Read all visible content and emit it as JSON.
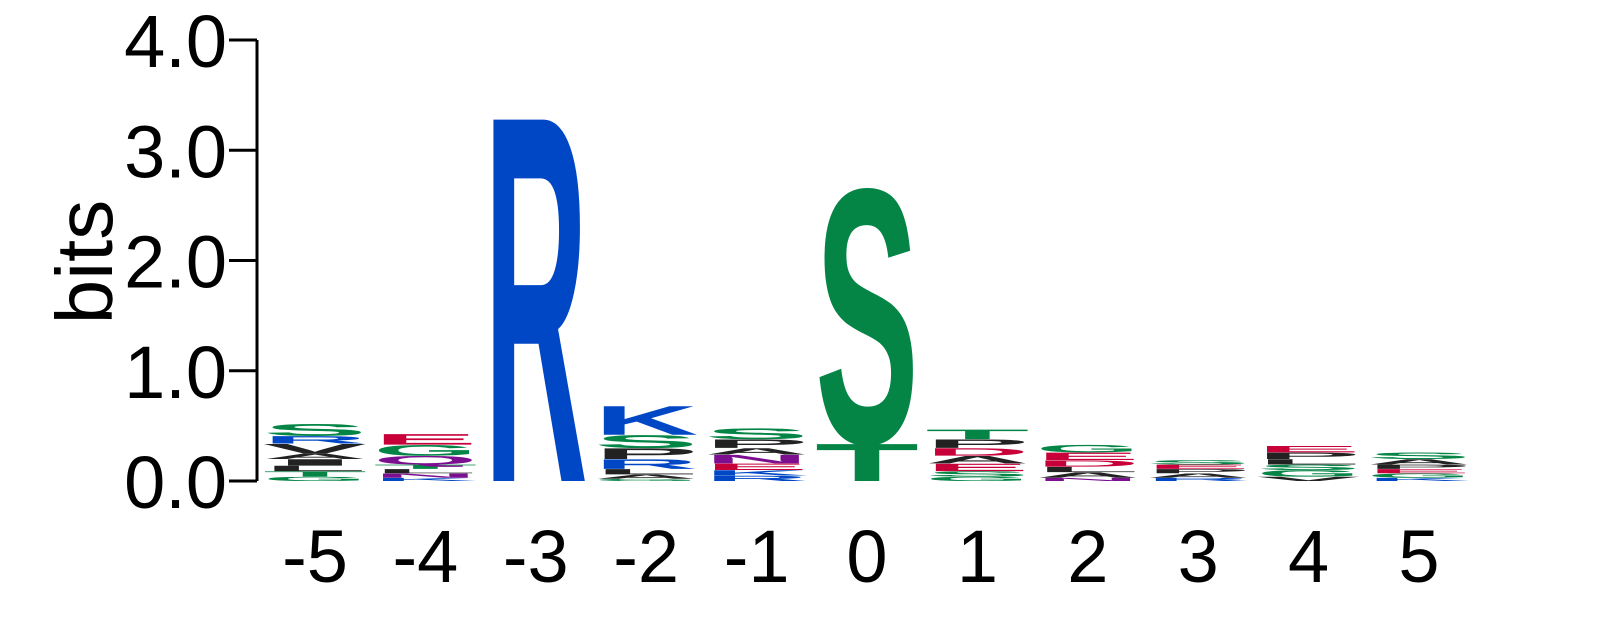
{
  "chart_data": {
    "type": "sequence-logo",
    "ylabel": "bits",
    "ylim": [
      0,
      4
    ],
    "yticks": [
      "0.0",
      "1.0",
      "2.0",
      "3.0",
      "4.0"
    ],
    "ytick_values": [
      0,
      1,
      2,
      3,
      4
    ],
    "colors": {
      "basic": "#0047c6",
      "polar": "#048546",
      "acidic": "#c8003a",
      "hydrophobic": "#222222",
      "amide": "#7b0f8f"
    },
    "positions": [
      {
        "label": "-5",
        "stack": [
          {
            "letter": "G",
            "height": 0.04,
            "color": "#048546"
          },
          {
            "letter": "T",
            "height": 0.05,
            "color": "#048546"
          },
          {
            "letter": "L",
            "height": 0.05,
            "color": "#222222"
          },
          {
            "letter": "I",
            "height": 0.06,
            "color": "#222222"
          },
          {
            "letter": "A",
            "height": 0.05,
            "color": "#222222"
          },
          {
            "letter": "V",
            "height": 0.09,
            "color": "#222222"
          },
          {
            "letter": "R",
            "height": 0.07,
            "color": "#0047c6"
          },
          {
            "letter": "S",
            "height": 0.11,
            "color": "#048546"
          }
        ]
      },
      {
        "label": "-4",
        "stack": [
          {
            "letter": "K",
            "height": 0.03,
            "color": "#0047c6"
          },
          {
            "letter": "N",
            "height": 0.04,
            "color": "#7b0f8f"
          },
          {
            "letter": "L",
            "height": 0.04,
            "color": "#222222"
          },
          {
            "letter": "T",
            "height": 0.04,
            "color": "#048546"
          },
          {
            "letter": "Q",
            "height": 0.08,
            "color": "#7b0f8f"
          },
          {
            "letter": "G",
            "height": 0.1,
            "color": "#048546"
          },
          {
            "letter": "E",
            "height": 0.1,
            "color": "#c8003a"
          }
        ]
      },
      {
        "label": "-3",
        "stack": [
          {
            "letter": "R",
            "height": 3.43,
            "color": "#0047c6"
          }
        ]
      },
      {
        "label": "-2",
        "stack": [
          {
            "letter": "G",
            "height": 0.02,
            "color": "#048546"
          },
          {
            "letter": "A",
            "height": 0.04,
            "color": "#222222"
          },
          {
            "letter": "L",
            "height": 0.05,
            "color": "#222222"
          },
          {
            "letter": "R",
            "height": 0.09,
            "color": "#0047c6"
          },
          {
            "letter": "P",
            "height": 0.1,
            "color": "#222222"
          },
          {
            "letter": "S",
            "height": 0.12,
            "color": "#048546"
          },
          {
            "letter": "K",
            "height": 0.27,
            "color": "#0047c6"
          }
        ]
      },
      {
        "label": "-1",
        "stack": [
          {
            "letter": "R",
            "height": 0.05,
            "color": "#0047c6"
          },
          {
            "letter": "K",
            "height": 0.05,
            "color": "#0047c6"
          },
          {
            "letter": "E",
            "height": 0.06,
            "color": "#c8003a"
          },
          {
            "letter": "N",
            "height": 0.08,
            "color": "#7b0f8f"
          },
          {
            "letter": "A",
            "height": 0.06,
            "color": "#222222"
          },
          {
            "letter": "P",
            "height": 0.08,
            "color": "#222222"
          },
          {
            "letter": "S",
            "height": 0.1,
            "color": "#048546"
          }
        ]
      },
      {
        "label": "0",
        "stack": [
          {
            "letter": "T",
            "height": 0.35,
            "color": "#048546"
          },
          {
            "letter": "S",
            "height": 2.38,
            "color": "#048546"
          }
        ]
      },
      {
        "label": "1",
        "stack": [
          {
            "letter": "G",
            "height": 0.04,
            "color": "#048546"
          },
          {
            "letter": "S",
            "height": 0.05,
            "color": "#048546"
          },
          {
            "letter": "E",
            "height": 0.07,
            "color": "#c8003a"
          },
          {
            "letter": "A",
            "height": 0.07,
            "color": "#222222"
          },
          {
            "letter": "D",
            "height": 0.07,
            "color": "#c8003a"
          },
          {
            "letter": "P",
            "height": 0.08,
            "color": "#222222"
          },
          {
            "letter": "T",
            "height": 0.09,
            "color": "#048546"
          }
        ]
      },
      {
        "label": "2",
        "stack": [
          {
            "letter": "N",
            "height": 0.03,
            "color": "#7b0f8f"
          },
          {
            "letter": "A",
            "height": 0.05,
            "color": "#222222"
          },
          {
            "letter": "L",
            "height": 0.05,
            "color": "#222222"
          },
          {
            "letter": "D",
            "height": 0.06,
            "color": "#c8003a"
          },
          {
            "letter": "E",
            "height": 0.07,
            "color": "#c8003a"
          },
          {
            "letter": "G",
            "height": 0.07,
            "color": "#048546"
          }
        ]
      },
      {
        "label": "3",
        "stack": [
          {
            "letter": "R",
            "height": 0.03,
            "color": "#0047c6"
          },
          {
            "letter": "A",
            "height": 0.04,
            "color": "#222222"
          },
          {
            "letter": "P",
            "height": 0.04,
            "color": "#222222"
          },
          {
            "letter": "E",
            "height": 0.04,
            "color": "#c8003a"
          },
          {
            "letter": "S",
            "height": 0.04,
            "color": "#048546"
          }
        ]
      },
      {
        "label": "4",
        "stack": [
          {
            "letter": "V",
            "height": 0.04,
            "color": "#222222"
          },
          {
            "letter": "G",
            "height": 0.06,
            "color": "#048546"
          },
          {
            "letter": "S",
            "height": 0.05,
            "color": "#048546"
          },
          {
            "letter": "L",
            "height": 0.05,
            "color": "#222222"
          },
          {
            "letter": "P",
            "height": 0.06,
            "color": "#222222"
          },
          {
            "letter": "E",
            "height": 0.06,
            "color": "#c8003a"
          }
        ]
      },
      {
        "label": "5",
        "stack": [
          {
            "letter": "K",
            "height": 0.03,
            "color": "#0047c6"
          },
          {
            "letter": "G",
            "height": 0.04,
            "color": "#048546"
          },
          {
            "letter": "E",
            "height": 0.04,
            "color": "#c8003a"
          },
          {
            "letter": "P",
            "height": 0.04,
            "color": "#222222"
          },
          {
            "letter": "A",
            "height": 0.05,
            "color": "#222222"
          },
          {
            "letter": "S",
            "height": 0.06,
            "color": "#048546"
          }
        ]
      }
    ]
  }
}
